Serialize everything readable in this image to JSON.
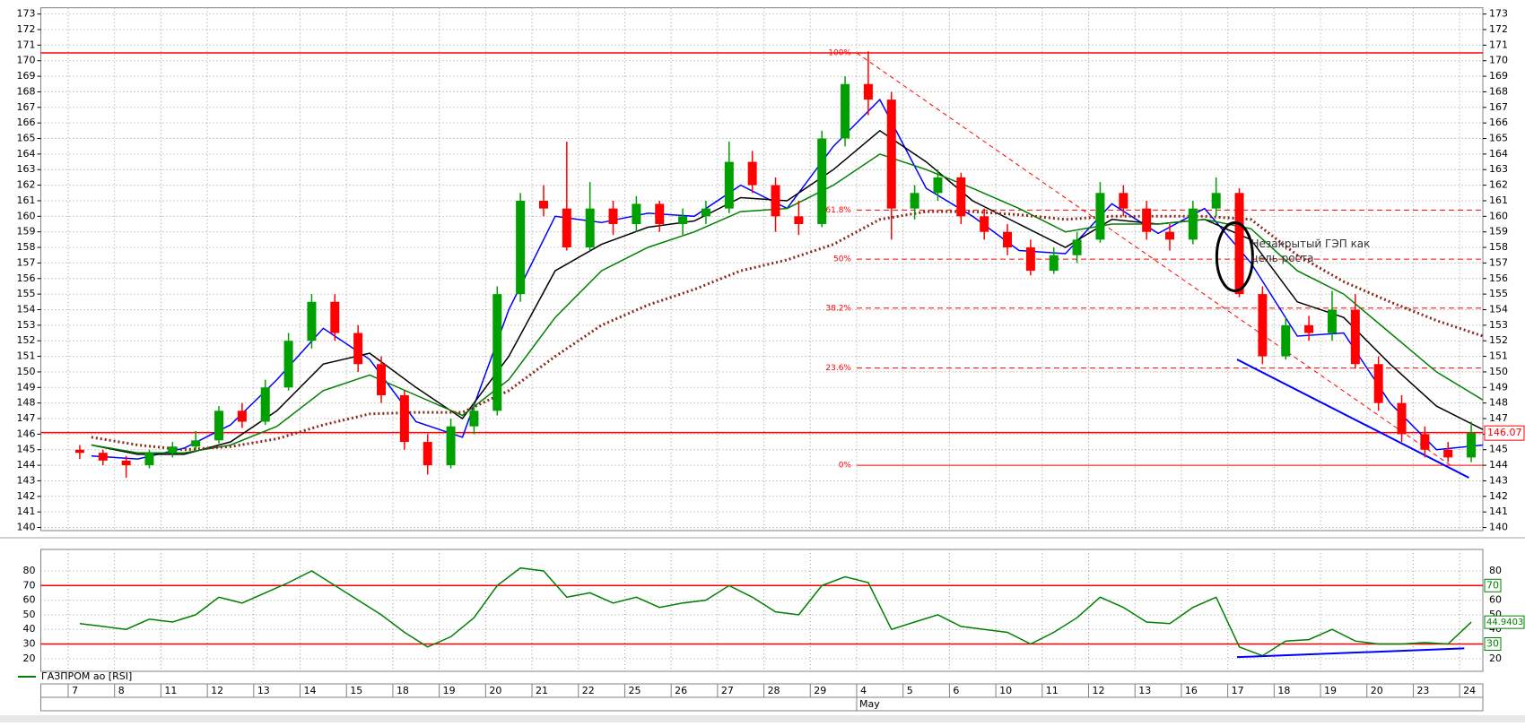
{
  "chart_data": [
    {
      "type": "candlestick",
      "x": [
        0.25,
        0.75,
        1.25,
        1.75,
        2.25,
        2.75,
        3.25,
        3.75,
        4.25,
        4.75,
        5.25,
        5.75,
        6.25,
        6.75,
        7.25,
        7.75,
        8.25,
        8.75,
        9.25,
        9.75,
        10.25,
        10.75,
        11.25,
        11.75,
        12.25,
        12.75,
        13.25,
        13.75,
        14.25,
        14.75,
        15.25,
        15.75,
        16.25,
        16.75,
        17.25,
        17.75,
        18.25,
        18.75,
        19.25,
        19.75,
        20.25,
        20.75,
        21.25,
        21.75,
        22.25,
        22.75,
        23.25,
        23.75,
        24.25,
        24.75,
        25.25,
        25.75,
        26.25,
        26.75,
        27.25,
        27.75,
        28.25,
        28.75,
        29.25,
        29.75,
        30.25
      ],
      "open": [
        145.0,
        144.8,
        144.3,
        144.0,
        144.8,
        145.2,
        145.6,
        147.5,
        146.8,
        149.0,
        152.0,
        154.5,
        152.5,
        150.5,
        148.5,
        145.5,
        144.0,
        146.5,
        147.5,
        155.0,
        161.0,
        160.5,
        158.0,
        160.5,
        159.5,
        160.8,
        159.5,
        160.0,
        160.5,
        163.5,
        162.0,
        160.0,
        159.5,
        165.0,
        168.5,
        167.5,
        160.5,
        161.5,
        162.5,
        160.0,
        159.0,
        158.0,
        156.5,
        157.5,
        158.5,
        161.5,
        160.5,
        159.0,
        158.5,
        160.5,
        161.5,
        155.0,
        151.0,
        153.0,
        152.5,
        154.0,
        150.5,
        148.0,
        146.0,
        145.0,
        144.5
      ],
      "high": [
        145.3,
        145.0,
        144.6,
        145.0,
        145.5,
        146.2,
        147.8,
        148.0,
        149.5,
        152.5,
        155.0,
        155.0,
        153.0,
        151.0,
        148.8,
        146.0,
        147.0,
        148.0,
        155.5,
        161.5,
        162.0,
        164.8,
        162.2,
        161.0,
        161.3,
        161.0,
        160.5,
        161.0,
        164.8,
        164.2,
        162.5,
        161.0,
        165.5,
        169.0,
        170.6,
        168.0,
        162.0,
        163.0,
        162.8,
        160.5,
        159.5,
        158.5,
        158.0,
        159.0,
        162.2,
        162.0,
        161.0,
        159.5,
        161.0,
        162.5,
        161.8,
        155.5,
        153.5,
        153.6,
        155.2,
        155.0,
        151.0,
        148.5,
        146.5,
        145.5,
        146.8
      ],
      "low": [
        144.4,
        144.0,
        143.2,
        143.8,
        144.5,
        145.0,
        145.4,
        146.4,
        146.6,
        148.8,
        151.5,
        152.0,
        150.0,
        148.0,
        145.0,
        143.4,
        143.8,
        146.0,
        147.2,
        154.5,
        160.0,
        157.8,
        157.8,
        158.8,
        159.0,
        159.0,
        158.8,
        159.5,
        160.2,
        161.5,
        159.0,
        158.8,
        159.3,
        164.5,
        166.5,
        158.5,
        159.8,
        161.0,
        159.5,
        158.5,
        157.5,
        156.2,
        156.3,
        157.0,
        158.3,
        160.0,
        158.5,
        157.8,
        158.2,
        160.0,
        154.8,
        150.5,
        150.8,
        152.0,
        152.0,
        150.2,
        147.5,
        145.5,
        144.5,
        144.2,
        144.2
      ],
      "close": [
        144.8,
        144.3,
        144.0,
        144.8,
        145.2,
        145.6,
        147.5,
        146.8,
        149.0,
        152.0,
        154.5,
        152.5,
        150.5,
        148.5,
        145.5,
        144.0,
        146.5,
        147.5,
        155.0,
        161.0,
        160.5,
        158.0,
        160.5,
        159.5,
        160.8,
        159.5,
        160.0,
        160.5,
        163.5,
        162.0,
        160.0,
        159.5,
        165.0,
        168.5,
        167.5,
        160.5,
        161.5,
        162.5,
        160.0,
        159.0,
        158.0,
        156.5,
        157.5,
        158.5,
        161.5,
        160.5,
        159.0,
        158.5,
        160.5,
        161.5,
        155.0,
        151.0,
        153.0,
        152.5,
        154.0,
        150.5,
        148.0,
        146.0,
        145.0,
        144.5,
        146.07
      ],
      "up_color": "#00a000",
      "down_color": "#ff0000",
      "ylim": [
        139.8,
        173.4
      ],
      "yticks": [
        140,
        141,
        142,
        143,
        144,
        145,
        146,
        147,
        148,
        149,
        150,
        151,
        152,
        153,
        154,
        155,
        156,
        157,
        158,
        159,
        160,
        161,
        162,
        163,
        164,
        165,
        166,
        167,
        168,
        169,
        170,
        171,
        172,
        173
      ],
      "xlim": [
        -0.59,
        30.5
      ],
      "xticks": [
        {
          "value": 0,
          "label": "7"
        },
        {
          "value": 1,
          "label": "8"
        },
        {
          "value": 2,
          "label": "11"
        },
        {
          "value": 3,
          "label": "12"
        },
        {
          "value": 4,
          "label": "13"
        },
        {
          "value": 5,
          "label": "14"
        },
        {
          "value": 6,
          "label": "15"
        },
        {
          "value": 7,
          "label": "18"
        },
        {
          "value": 8,
          "label": "19"
        },
        {
          "value": 9,
          "label": "20"
        },
        {
          "value": 10,
          "label": "21"
        },
        {
          "value": 11,
          "label": "22"
        },
        {
          "value": 12,
          "label": "25"
        },
        {
          "value": 13,
          "label": "26"
        },
        {
          "value": 14,
          "label": "27"
        },
        {
          "value": 15,
          "label": "28"
        },
        {
          "value": 16,
          "label": "29"
        },
        {
          "value": 17,
          "label": "4"
        },
        {
          "value": 18,
          "label": "5"
        },
        {
          "value": 19,
          "label": "6"
        },
        {
          "value": 20,
          "label": "10"
        },
        {
          "value": 21,
          "label": "11"
        },
        {
          "value": 22,
          "label": "12"
        },
        {
          "value": 23,
          "label": "13"
        },
        {
          "value": 24,
          "label": "16"
        },
        {
          "value": 25,
          "label": "17"
        },
        {
          "value": 26,
          "label": "18"
        },
        {
          "value": 27,
          "label": "19"
        },
        {
          "value": 28,
          "label": "20"
        },
        {
          "value": 29,
          "label": "23"
        },
        {
          "value": 30,
          "label": "24"
        }
      ],
      "month_label": {
        "value": 17,
        "label": "May"
      },
      "grid": true,
      "overlays": [
        {
          "color": "#0000ff",
          "dotted": false,
          "x": [
            0.5,
            1.5,
            2.5,
            3.5,
            4.5,
            5.5,
            6.5,
            7.5,
            8.5,
            9.5,
            10.5,
            11.5,
            12.5,
            13.5,
            14.5,
            15.5,
            16.5,
            17.5,
            18.5,
            19.5,
            20.5,
            21.5,
            22.5,
            23.5,
            24.5,
            25.5,
            26.5,
            27.5,
            28.5,
            29.5,
            30.5
          ],
          "values": [
            144.6,
            144.4,
            145.1,
            146.6,
            149.5,
            152.8,
            150.8,
            146.8,
            145.8,
            154,
            160,
            159.6,
            160.2,
            160.0,
            162,
            160.5,
            164.5,
            167.5,
            161.8,
            160,
            157.8,
            157.6,
            160.8,
            158.9,
            160.5,
            157,
            152.3,
            152.5,
            148,
            145,
            145.3
          ]
        },
        {
          "color": "#000000",
          "dotted": false,
          "x": [
            0.5,
            1.5,
            2.5,
            3.5,
            4.5,
            5.5,
            6.5,
            7.5,
            8.5,
            9.5,
            10.5,
            11.5,
            12.5,
            13.5,
            14.5,
            15.5,
            16.5,
            17.5,
            18.5,
            19.5,
            20.5,
            21.5,
            22.5,
            23.5,
            24.5,
            25.5,
            26.5,
            27.5,
            28.5,
            29.5,
            30.5
          ],
          "values": [
            145.3,
            144.7,
            144.7,
            145.5,
            147.5,
            150.5,
            151.2,
            149,
            147,
            151,
            156.5,
            158.2,
            159.3,
            159.7,
            161.2,
            161,
            163,
            165.5,
            163.5,
            161,
            159.5,
            158,
            159.8,
            159.5,
            159.8,
            158.5,
            154.5,
            153.5,
            150.5,
            147.8,
            146.3
          ]
        },
        {
          "color": "#008000",
          "dotted": false,
          "x": [
            0.5,
            1.5,
            2.5,
            3.5,
            4.5,
            5.5,
            6.5,
            7.5,
            8.5,
            9.5,
            10.5,
            11.5,
            12.5,
            13.5,
            14.5,
            15.5,
            16.5,
            17.5,
            18.5,
            19.5,
            20.5,
            21.5,
            22.5,
            23.5,
            24.5,
            25.5,
            26.5,
            27.5,
            28.5,
            29.5,
            30.5
          ],
          "values": [
            145.3,
            144.8,
            144.8,
            145.3,
            146.5,
            148.8,
            149.8,
            148.5,
            147.2,
            149.5,
            153.5,
            156.5,
            158,
            159,
            160.3,
            160.5,
            162,
            164,
            163,
            161.8,
            160.5,
            159,
            159.5,
            159.5,
            159.8,
            159.2,
            156.5,
            155,
            152.5,
            150,
            148.2
          ]
        },
        {
          "color": "#8b2a1a",
          "dotted": true,
          "x": [
            0.5,
            1.5,
            2.5,
            3.5,
            4.5,
            5.5,
            6.5,
            7.5,
            8.5,
            9.5,
            10.5,
            11.5,
            12.5,
            13.5,
            14.5,
            15.5,
            16.5,
            17.5,
            18.5,
            19.5,
            20.5,
            21.5,
            22.5,
            23.5,
            24.5,
            25.5,
            26.5,
            27.5,
            28.5,
            29.5,
            30.5
          ],
          "values": [
            145.8,
            145.3,
            145.0,
            145.2,
            145.7,
            146.6,
            147.3,
            147.4,
            147.4,
            148.8,
            151,
            153,
            154.3,
            155.3,
            156.5,
            157.2,
            158.2,
            159.8,
            160.3,
            160.3,
            160.1,
            159.8,
            160,
            160,
            160,
            159.8,
            157.5,
            155.8,
            154.5,
            153.3,
            152.3
          ]
        }
      ],
      "levels": [
        170.5,
        146.1
      ],
      "fibonacci": {
        "start": 17,
        "color": "#ff0000",
        "levels": [
          {
            "label": "100%",
            "price": 170.5
          },
          {
            "label": "61.8%",
            "price": 160.4
          },
          {
            "label": "50%",
            "price": 157.25
          },
          {
            "label": "38.2%",
            "price": 154.1
          },
          {
            "label": "23.6%",
            "price": 150.25
          },
          {
            "label": "0%",
            "price": 144
          }
        ]
      },
      "trend_lines": [
        {
          "color": "#ff0000",
          "dashed": true,
          "x": [
            17,
            29.8
          ],
          "values": [
            170.5,
            144
          ]
        },
        {
          "color": "#0000ff",
          "dashed": false,
          "x": [
            25.2,
            30.2
          ],
          "values": [
            150.8,
            143.2
          ]
        }
      ],
      "annotation": {
        "lines": [
          "Незакрытый ГЭП как",
          "цель роста"
        ]
      }
    },
    {
      "type": "line",
      "title": "ГАЗПРОМ ао [RSI]",
      "color": "#008000",
      "x": [
        0.25,
        0.75,
        1.25,
        1.75,
        2.25,
        2.75,
        3.25,
        3.75,
        4.25,
        4.75,
        5.25,
        5.75,
        6.25,
        6.75,
        7.25,
        7.75,
        8.25,
        8.75,
        9.25,
        9.75,
        10.25,
        10.75,
        11.25,
        11.75,
        12.25,
        12.75,
        13.25,
        13.75,
        14.25,
        14.75,
        15.25,
        15.75,
        16.25,
        16.75,
        17.25,
        17.75,
        18.25,
        18.75,
        19.25,
        19.75,
        20.25,
        20.75,
        21.25,
        21.75,
        22.25,
        22.75,
        23.25,
        23.75,
        24.25,
        24.75,
        25.25,
        25.75,
        26.25,
        26.75,
        27.25,
        27.75,
        28.25,
        28.75,
        29.25,
        29.75,
        30.25
      ],
      "values": [
        44,
        42,
        40,
        47,
        45,
        50,
        62,
        58,
        65,
        72,
        80,
        70,
        60,
        50,
        38,
        28,
        35,
        48,
        70,
        82,
        80,
        62,
        65,
        58,
        62,
        55,
        58,
        60,
        70,
        62,
        52,
        50,
        70,
        76,
        72,
        40,
        45,
        50,
        42,
        40,
        38,
        30,
        38,
        48,
        62,
        55,
        45,
        44,
        55,
        62,
        28,
        22,
        32,
        33,
        40,
        32,
        30,
        30,
        31,
        30,
        44.9403
      ],
      "ylim": [
        11.3,
        94.7
      ],
      "yticks": [
        20,
        30,
        40,
        50,
        60,
        70,
        80
      ],
      "xlim": [
        -0.59,
        30.5
      ],
      "levels": [
        70,
        30
      ],
      "trend_line": {
        "color": "#0000ff",
        "x": [
          25.2,
          30.1
        ],
        "values": [
          21,
          27
        ]
      }
    }
  ]
}
